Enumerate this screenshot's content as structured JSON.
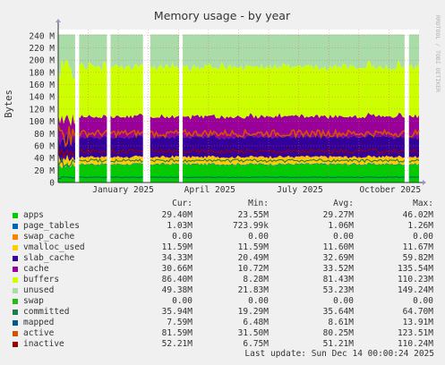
{
  "chart_data": {
    "type": "area",
    "title": "Memory usage - by year",
    "ylabel": "Bytes",
    "watermark": "RRDTOOL / TOBI OETIKER",
    "ylim": [
      0,
      250
    ],
    "y_ticks": [
      "0",
      "20 M",
      "40 M",
      "60 M",
      "80 M",
      "100 M",
      "120 M",
      "140 M",
      "160 M",
      "180 M",
      "200 M",
      "220 M",
      "240 M"
    ],
    "y_tick_values": [
      0,
      20,
      40,
      60,
      80,
      100,
      120,
      140,
      160,
      180,
      200,
      220,
      240
    ],
    "x_labels": [
      "January 2025",
      "April 2025",
      "July 2025",
      "October 2025"
    ],
    "x_label_positions": [
      0.18,
      0.42,
      0.67,
      0.92
    ],
    "gaps": [
      [
        0.047,
        0.058
      ],
      [
        0.135,
        0.145
      ],
      [
        0.235,
        0.255
      ],
      [
        0.335,
        0.345
      ],
      [
        0.96,
        0.972
      ]
    ],
    "series": [
      {
        "name": "apps",
        "color": "#00cc00",
        "stacked": true,
        "mean": 29.27
      },
      {
        "name": "page_tables",
        "color": "#0066b3",
        "stacked": true,
        "mean": 1.06
      },
      {
        "name": "swap_cache",
        "color": "#ff8000",
        "stacked": true,
        "mean": 0
      },
      {
        "name": "vmalloc_used",
        "color": "#ffcc00",
        "stacked": true,
        "mean": 11.6
      },
      {
        "name": "slab_cache",
        "color": "#330099",
        "stacked": true,
        "mean": 32.69
      },
      {
        "name": "cache",
        "color": "#990099",
        "stacked": true,
        "mean": 33.52
      },
      {
        "name": "buffers",
        "color": "#ccff00",
        "stacked": true,
        "mean": 81.43
      },
      {
        "name": "unused",
        "color": "#aadcaa",
        "stacked": true,
        "mean": 53.23
      },
      {
        "name": "swap",
        "color": "#24bc14",
        "stacked": true,
        "mean": 0
      },
      {
        "name": "committed",
        "color": "#1a7f4c",
        "stacked": false,
        "mean": 35.64
      },
      {
        "name": "mapped",
        "color": "#005b8c",
        "stacked": false,
        "mean": 8.61
      },
      {
        "name": "active",
        "color": "#cc5500",
        "stacked": false,
        "mean": 80.25
      },
      {
        "name": "inactive",
        "color": "#990000",
        "stacked": false,
        "mean": 51.21
      }
    ]
  },
  "legend": {
    "headers": {
      "cur": "Cur:",
      "min": "Min:",
      "avg": "Avg:",
      "max": "Max:"
    },
    "rows": [
      {
        "name": "apps",
        "color": "#00cc00",
        "cur": "29.40M",
        "min": "23.55M",
        "avg": "29.27M",
        "max": "46.02M"
      },
      {
        "name": "page_tables",
        "color": "#0066b3",
        "cur": "1.03M",
        "min": "723.99k",
        "avg": "1.06M",
        "max": "1.26M"
      },
      {
        "name": "swap_cache",
        "color": "#ff8000",
        "cur": "0.00",
        "min": "0.00",
        "avg": "0.00",
        "max": "0.00"
      },
      {
        "name": "vmalloc_used",
        "color": "#ffcc00",
        "cur": "11.59M",
        "min": "11.59M",
        "avg": "11.60M",
        "max": "11.67M"
      },
      {
        "name": "slab_cache",
        "color": "#330099",
        "cur": "34.33M",
        "min": "20.49M",
        "avg": "32.69M",
        "max": "59.82M"
      },
      {
        "name": "cache",
        "color": "#990099",
        "cur": "30.66M",
        "min": "10.72M",
        "avg": "33.52M",
        "max": "135.54M"
      },
      {
        "name": "buffers",
        "color": "#ccff00",
        "cur": "86.40M",
        "min": "8.28M",
        "avg": "81.43M",
        "max": "110.23M"
      },
      {
        "name": "unused",
        "color": "#aadcaa",
        "cur": "49.38M",
        "min": "21.83M",
        "avg": "53.23M",
        "max": "149.24M"
      },
      {
        "name": "swap",
        "color": "#24bc14",
        "cur": "0.00",
        "min": "0.00",
        "avg": "0.00",
        "max": "0.00"
      },
      {
        "name": "committed",
        "color": "#1a7f4c",
        "cur": "35.94M",
        "min": "19.29M",
        "avg": "35.64M",
        "max": "64.70M"
      },
      {
        "name": "mapped",
        "color": "#005b8c",
        "cur": "7.59M",
        "min": "6.48M",
        "avg": "8.61M",
        "max": "13.91M"
      },
      {
        "name": "active",
        "color": "#cc5500",
        "cur": "81.59M",
        "min": "31.50M",
        "avg": "80.25M",
        "max": "123.51M"
      },
      {
        "name": "inactive",
        "color": "#990000",
        "cur": "52.21M",
        "min": "6.75M",
        "avg": "51.21M",
        "max": "110.24M"
      }
    ]
  },
  "footer": {
    "last_update": "Last update: Sun Dec 14 00:00:24 2025"
  }
}
